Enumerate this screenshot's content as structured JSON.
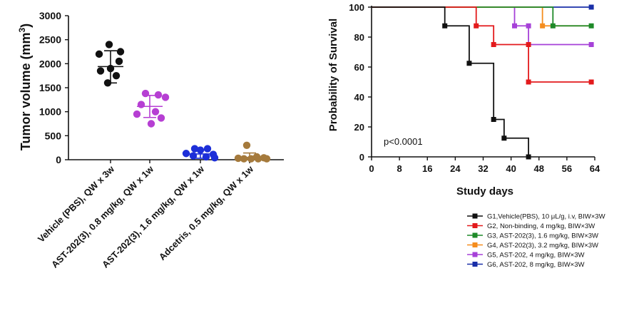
{
  "chart_data": [
    {
      "type": "scatter",
      "ylabel": "Tumor volume (mm",
      "ylabel_sup": "3",
      "ylabel_close": ")",
      "ylim": [
        0,
        3000
      ],
      "yticks": [
        0,
        500,
        1000,
        1500,
        2000,
        2500,
        3000
      ],
      "categories": [
        "Vehicle (PBS), QW x 3w",
        "AST-202(3), 0.8 mg/kg, QW x 1w",
        "AST-202(3), 1.6 mg/kg, QW x 1w",
        "Adcetris, 0.5 mg/kg, QW x 1w"
      ],
      "series": [
        {
          "color": "#111111",
          "points": [
            2400,
            2250,
            2200,
            2050,
            1900,
            1850,
            1750,
            1600
          ],
          "mean": 1940,
          "sd_upper": 2270,
          "sd_lower": 1600
        },
        {
          "color": "#b63fd3",
          "points": [
            1380,
            1350,
            1300,
            1150,
            1000,
            950,
            870,
            750
          ],
          "mean": 1110,
          "sd_upper": 1340,
          "sd_lower": 880
        },
        {
          "color": "#1d2fd8",
          "points": [
            230,
            230,
            200,
            130,
            110,
            80,
            60,
            40
          ],
          "mean": 120,
          "sd_upper": 200,
          "sd_lower": 30
        },
        {
          "color": "#a57a3c",
          "points": [
            300,
            60,
            40,
            30,
            20,
            20,
            20,
            20
          ],
          "mean": 50,
          "sd_upper": 140,
          "sd_lower": 0
        }
      ]
    },
    {
      "type": "line",
      "subtype": "step",
      "ylabel": "Probability of Survival",
      "xlabel": "Study days",
      "xlim": [
        0,
        64
      ],
      "ylim": [
        0,
        100
      ],
      "xticks": [
        0,
        8,
        16,
        24,
        32,
        40,
        48,
        56,
        64
      ],
      "yticks": [
        0,
        20,
        40,
        60,
        80,
        100
      ],
      "annotation": "p<0.0001",
      "series": [
        {
          "name": "G1,Vehicle(PBS), 10 μL/g, i.v, BIW×3W",
          "color": "#111111",
          "steps": [
            [
              0,
              100
            ],
            [
              21,
              87.5
            ],
            [
              28,
              62.5
            ],
            [
              35,
              25
            ],
            [
              38,
              12.5
            ],
            [
              45,
              0
            ]
          ],
          "markers": [
            [
              21,
              87.5
            ],
            [
              28,
              62.5
            ],
            [
              35,
              25
            ],
            [
              38,
              12.5
            ],
            [
              45,
              0
            ]
          ]
        },
        {
          "name": "G2, Non-binding, 4 mg/kg, BIW×3W",
          "color": "#e31a1c",
          "steps": [
            [
              0,
              100
            ],
            [
              30,
              87.5
            ],
            [
              35,
              75
            ],
            [
              45,
              50
            ],
            [
              63,
              50
            ]
          ],
          "markers": [
            [
              30,
              87.5
            ],
            [
              35,
              75
            ],
            [
              45,
              75
            ],
            [
              45,
              50
            ],
            [
              63,
              50
            ]
          ]
        },
        {
          "name": "G3, AST-202(3), 1.6 mg/kg,  BIW×3W",
          "color": "#1e8a28",
          "steps": [
            [
              0,
              100
            ],
            [
              52,
              87.5
            ],
            [
              63,
              87.5
            ]
          ],
          "markers": [
            [
              52,
              87.5
            ],
            [
              63,
              87.5
            ]
          ]
        },
        {
          "name": "G4, AST-202(3), 3.2 mg/kg, BIW×3W",
          "color": "#f58d1e",
          "steps": [
            [
              0,
              100
            ],
            [
              49,
              87.5
            ],
            [
              63,
              87.5
            ]
          ],
          "markers": [
            [
              49,
              87.5
            ]
          ]
        },
        {
          "name": "G5, AST-202, 4 mg/kg, BIW×3W",
          "color": "#a641d8",
          "steps": [
            [
              0,
              100
            ],
            [
              41,
              87.5
            ],
            [
              45,
              75
            ],
            [
              63,
              75
            ]
          ],
          "markers": [
            [
              41,
              87.5
            ],
            [
              45,
              87.5
            ],
            [
              63,
              75
            ]
          ]
        },
        {
          "name": "G6,  AST-202, 8 mg/kg, BIW×3W",
          "color": "#1a2fa8",
          "steps": [
            [
              0,
              100
            ],
            [
              63,
              100
            ]
          ],
          "markers": [
            [
              63,
              100
            ]
          ]
        }
      ]
    }
  ]
}
